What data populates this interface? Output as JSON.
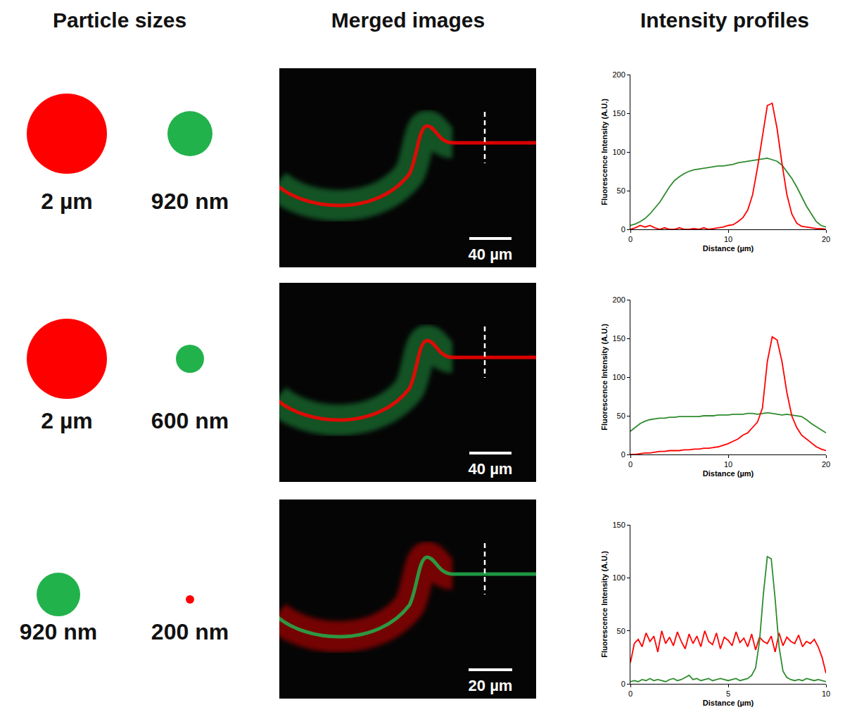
{
  "headers": [
    "Particle sizes",
    "Merged images",
    "Intensity profiles"
  ],
  "rows": [
    {
      "particles": [
        {
          "label": "2 µm",
          "color": "#ff0000"
        },
        {
          "label": "920 nm",
          "color": "#22b24c"
        }
      ],
      "image": {
        "scale_bar": "40 µm"
      }
    },
    {
      "particles": [
        {
          "label": "2 µm",
          "color": "#ff0000"
        },
        {
          "label": "600 nm",
          "color": "#22b24c"
        }
      ],
      "image": {
        "scale_bar": "40 µm"
      }
    },
    {
      "particles": [
        {
          "label": "920 nm",
          "color": "#22b24c"
        },
        {
          "label": "200 nm",
          "color": "#ff0000"
        }
      ],
      "image": {
        "scale_bar": "20 µm"
      }
    }
  ],
  "chart_data": [
    {
      "type": "line",
      "x_label": "Distance (µm)",
      "y_label": "Fluorescence Intensity (A.U.)",
      "xlim": [
        0,
        20
      ],
      "xticks": [
        0,
        10,
        20
      ],
      "ylim": [
        0,
        200
      ],
      "yticks": [
        0,
        50,
        100,
        150,
        200
      ],
      "grid": false,
      "x": [
        0,
        0.5,
        1,
        1.5,
        2,
        2.5,
        3,
        3.5,
        4,
        4.5,
        5,
        5.5,
        6,
        6.5,
        7,
        7.5,
        8,
        8.5,
        9,
        9.5,
        10,
        10.5,
        11,
        11.5,
        12,
        12.5,
        13,
        13.5,
        14,
        14.5,
        15,
        15.5,
        16,
        16.5,
        17,
        17.5,
        18,
        18.5,
        19,
        19.5,
        20
      ],
      "series": [
        {
          "color": "#2e8b2e",
          "values": [
            5,
            7,
            10,
            14,
            20,
            27,
            35,
            45,
            55,
            63,
            68,
            72,
            75,
            77,
            78,
            79,
            80,
            81,
            82,
            82,
            83,
            84,
            86,
            87,
            88,
            89,
            90,
            91,
            92,
            90,
            88,
            83,
            75,
            66,
            55,
            42,
            30,
            20,
            10,
            5,
            3
          ]
        },
        {
          "color": "#ff0000",
          "values": [
            0,
            2,
            5,
            3,
            5,
            2,
            0,
            2,
            0,
            0,
            2,
            0,
            0,
            1,
            0,
            2,
            0,
            1,
            2,
            3,
            5,
            6,
            10,
            15,
            25,
            45,
            80,
            120,
            160,
            163,
            130,
            85,
            45,
            20,
            8,
            4,
            3,
            2,
            1,
            1,
            0
          ]
        }
      ]
    },
    {
      "type": "line",
      "x_label": "Distance (µm)",
      "y_label": "Fluorescence Intensity (A.U.)",
      "xlim": [
        0,
        20
      ],
      "xticks": [
        0,
        10,
        20
      ],
      "ylim": [
        0,
        200
      ],
      "yticks": [
        0,
        50,
        100,
        150,
        200
      ],
      "grid": false,
      "x": [
        0,
        0.5,
        1,
        1.5,
        2,
        2.5,
        3,
        3.5,
        4,
        4.5,
        5,
        5.5,
        6,
        6.5,
        7,
        7.5,
        8,
        8.5,
        9,
        9.5,
        10,
        10.5,
        11,
        11.5,
        12,
        12.5,
        13,
        13.5,
        14,
        14.5,
        15,
        15.5,
        16,
        16.5,
        17,
        17.5,
        18,
        18.5,
        19,
        19.5,
        20
      ],
      "series": [
        {
          "color": "#2e8b2e",
          "values": [
            30,
            35,
            40,
            43,
            45,
            46,
            47,
            47,
            48,
            48,
            49,
            49,
            49,
            49,
            49,
            50,
            50,
            50,
            51,
            51,
            51,
            52,
            52,
            52,
            53,
            53,
            52,
            53,
            54,
            53,
            52,
            51,
            52,
            51,
            50,
            49,
            45,
            40,
            36,
            32,
            28
          ]
        },
        {
          "color": "#ff0000",
          "values": [
            0,
            0,
            1,
            2,
            2,
            3,
            4,
            4,
            5,
            5,
            5,
            6,
            6,
            7,
            7,
            8,
            8,
            9,
            10,
            12,
            14,
            17,
            20,
            25,
            28,
            35,
            42,
            60,
            120,
            152,
            148,
            120,
            80,
            50,
            35,
            25,
            20,
            15,
            10,
            7,
            5
          ]
        }
      ]
    },
    {
      "type": "line",
      "x_label": "Distance (µm)",
      "y_label": "Fluorescence Intensity (A.U.)",
      "xlim": [
        0,
        10
      ],
      "xticks": [
        0,
        5,
        10
      ],
      "ylim": [
        0,
        150
      ],
      "yticks": [
        0,
        50,
        100,
        150
      ],
      "grid": false,
      "x": [
        0,
        0.2,
        0.4,
        0.6,
        0.8,
        1,
        1.2,
        1.4,
        1.6,
        1.8,
        2,
        2.2,
        2.4,
        2.6,
        2.8,
        3,
        3.2,
        3.4,
        3.6,
        3.8,
        4,
        4.2,
        4.4,
        4.6,
        4.8,
        5,
        5.2,
        5.4,
        5.6,
        5.8,
        6,
        6.2,
        6.4,
        6.6,
        6.8,
        7,
        7.2,
        7.4,
        7.6,
        7.8,
        8,
        8.2,
        8.4,
        8.6,
        8.8,
        9,
        9.2,
        9.4,
        9.6,
        9.8,
        10
      ],
      "series": [
        {
          "color": "#ff0000",
          "values": [
            20,
            38,
            42,
            35,
            48,
            40,
            45,
            30,
            50,
            38,
            44,
            36,
            49,
            40,
            33,
            47,
            38,
            45,
            35,
            50,
            40,
            37,
            48,
            33,
            44,
            41,
            36,
            49,
            39,
            43,
            35,
            47,
            32,
            44,
            40,
            38,
            45,
            30,
            48,
            36,
            44,
            40,
            38,
            46,
            35,
            40,
            38,
            42,
            35,
            25,
            10
          ]
        },
        {
          "color": "#2e8b2e",
          "values": [
            2,
            3,
            2,
            4,
            3,
            5,
            3,
            4,
            3,
            2,
            4,
            5,
            3,
            4,
            6,
            8,
            4,
            5,
            3,
            4,
            5,
            3,
            4,
            5,
            4,
            3,
            4,
            5,
            3,
            4,
            5,
            8,
            15,
            40,
            85,
            120,
            118,
            80,
            35,
            12,
            6,
            4,
            3,
            4,
            3,
            5,
            4,
            3,
            4,
            3,
            2
          ]
        }
      ]
    }
  ]
}
